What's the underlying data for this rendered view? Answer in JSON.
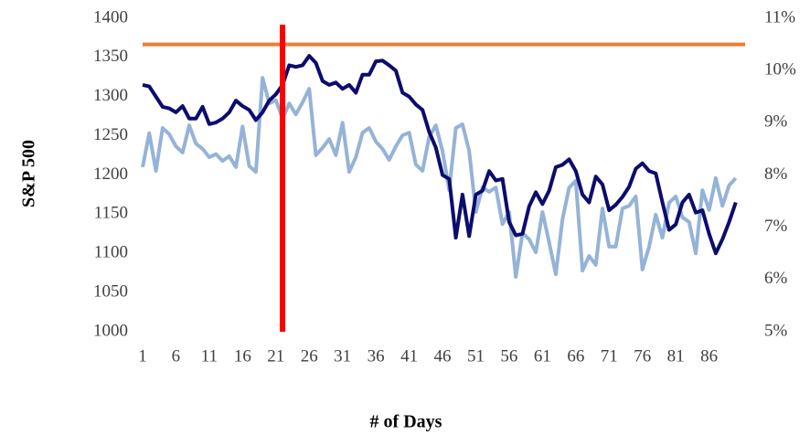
{
  "chart_data": {
    "type": "line",
    "y_axis_label": "S&P 500",
    "x_axis_label": "# of Days",
    "x": [
      1,
      2,
      3,
      4,
      5,
      6,
      7,
      8,
      9,
      10,
      11,
      12,
      13,
      14,
      15,
      16,
      17,
      18,
      19,
      20,
      21,
      22,
      23,
      24,
      25,
      26,
      27,
      28,
      29,
      30,
      31,
      32,
      33,
      34,
      35,
      36,
      37,
      38,
      39,
      40,
      41,
      42,
      43,
      44,
      45,
      46,
      47,
      48,
      49,
      50,
      51,
      52,
      53,
      54,
      55,
      56,
      57,
      58,
      59,
      60,
      61,
      62,
      63,
      64,
      65,
      66,
      67,
      68,
      69,
      70,
      71,
      72,
      73,
      74,
      75,
      76,
      77,
      78,
      79,
      80,
      81,
      82,
      83,
      84,
      85,
      86,
      87,
      88,
      89,
      90
    ],
    "xlim": [
      0.18,
      91.4
    ],
    "xticks": [
      1,
      6,
      11,
      16,
      21,
      26,
      31,
      36,
      41,
      46,
      51,
      56,
      61,
      66,
      71,
      76,
      81,
      86
    ],
    "ylim": [
      1000,
      1400
    ],
    "yticks": [
      1000,
      1050,
      1100,
      1150,
      1200,
      1250,
      1300,
      1350,
      1400
    ],
    "y2lim": [
      5,
      11
    ],
    "y2ticks": [
      {
        "value": 5,
        "label": "5%"
      },
      {
        "value": 6,
        "label": "6%"
      },
      {
        "value": 7,
        "label": "7%"
      },
      {
        "value": 8,
        "label": "8%"
      },
      {
        "value": 9,
        "label": "9%"
      },
      {
        "value": 10,
        "label": "10%"
      },
      {
        "value": 11,
        "label": "11%"
      }
    ],
    "series": [
      {
        "color": "#95b3d7",
        "axis": "y2",
        "values": [
          8.15,
          8.8,
          8.08,
          8.9,
          8.78,
          8.55,
          8.43,
          8.95,
          8.6,
          8.5,
          8.34,
          8.4,
          8.27,
          8.36,
          8.15,
          8.93,
          8.17,
          8.06,
          9.86,
          9.37,
          9.43,
          9.08,
          9.37,
          9.16,
          9.39,
          9.65,
          8.38,
          8.52,
          8.69,
          8.38,
          9.0,
          8.06,
          8.34,
          8.81,
          8.9,
          8.64,
          8.5,
          8.29,
          8.55,
          8.76,
          8.81,
          8.2,
          8.08,
          8.73,
          8.95,
          8.46,
          7.71,
          8.9,
          8.97,
          8.46,
          7.29,
          7.76,
          7.68,
          7.76,
          7.06,
          7.29,
          6.05,
          6.89,
          6.77,
          6.52,
          7.29,
          6.71,
          6.1,
          7.15,
          7.76,
          7.89,
          6.17,
          6.45,
          6.28,
          7.36,
          6.63,
          6.63,
          7.36,
          7.41,
          7.59,
          6.19,
          6.63,
          7.24,
          6.8,
          7.47,
          7.59,
          7.19,
          7.1,
          6.5,
          7.71,
          7.33,
          7.94,
          7.41,
          7.8,
          7.94
        ]
      },
      {
        "color": "#0c0c6e",
        "values": [
          1315,
          1313,
          1300,
          1287,
          1285,
          1280,
          1288,
          1272,
          1272,
          1287,
          1265,
          1267,
          1272,
          1280,
          1295,
          1288,
          1283,
          1270,
          1280,
          1295,
          1303,
          1315,
          1340,
          1338,
          1340,
          1352,
          1343,
          1320,
          1315,
          1318,
          1310,
          1315,
          1305,
          1328,
          1328,
          1345,
          1346,
          1340,
          1333,
          1305,
          1300,
          1290,
          1283,
          1255,
          1235,
          1200,
          1195,
          1120,
          1175,
          1122,
          1175,
          1180,
          1205,
          1193,
          1195,
          1140,
          1123,
          1125,
          1160,
          1178,
          1163,
          1180,
          1210,
          1213,
          1220,
          1205,
          1175,
          1165,
          1198,
          1188,
          1155,
          1162,
          1172,
          1185,
          1208,
          1215,
          1205,
          1202,
          1165,
          1130,
          1137,
          1165,
          1175,
          1152,
          1155,
          1125,
          1100,
          1118,
          1140,
          1165
        ]
      }
    ],
    "hline": {
      "value": 10.5,
      "axis": "y2",
      "color": "#ed7d31"
    },
    "vline": {
      "x": 22,
      "color": "#ff0000"
    }
  }
}
